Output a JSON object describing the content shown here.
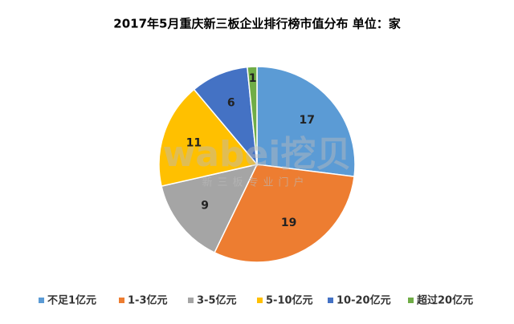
{
  "chart_data": {
    "type": "pie",
    "title": "2017年5月重庆新三板企业排行榜市值分布 单位：家",
    "categories": [
      "不足1亿元",
      "1-3亿元",
      "3-5亿元",
      "5-10亿元",
      "10-20亿元",
      "超过20亿元"
    ],
    "values": [
      17,
      19,
      9,
      11,
      6,
      1
    ],
    "colors": [
      "#5b9bd5",
      "#ed7d31",
      "#a5a5a5",
      "#ffc000",
      "#4472c4",
      "#70ad47"
    ],
    "legend": "bottom"
  },
  "watermark": {
    "brand": "wabei挖贝",
    "tagline": "新三板专业门户"
  }
}
